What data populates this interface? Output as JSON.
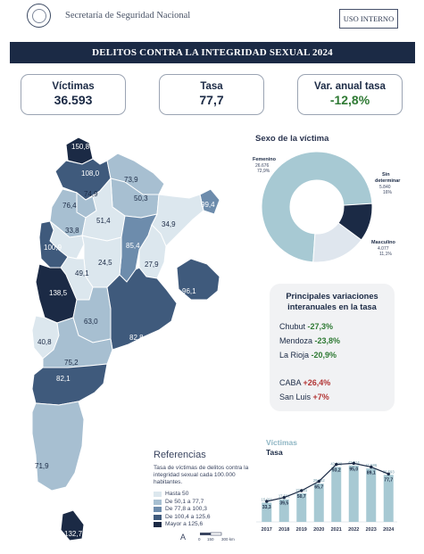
{
  "header": {
    "organization": "Secretaría de Seguridad Nacional",
    "badge": "USO INTERNO"
  },
  "title": "DELITOS CONTRA LA INTEGRIDAD SEXUAL 2024",
  "kpis": [
    {
      "label": "Víctimas",
      "value": "36.593"
    },
    {
      "label": "Tasa",
      "value": "77,7"
    },
    {
      "label": "Var. anual tasa",
      "value": "-12,8%"
    }
  ],
  "map": {
    "province_rates": [
      {
        "province": "Jujuy",
        "value": "150,8"
      },
      {
        "province": "Salta",
        "value": "108,0"
      },
      {
        "province": "Formosa",
        "value": "73,9"
      },
      {
        "province": "Tucumán",
        "value": "74,9"
      },
      {
        "province": "Chaco",
        "value": "50,3"
      },
      {
        "province": "Misiones",
        "value": "99,4"
      },
      {
        "province": "Catamarca",
        "value": "76,4"
      },
      {
        "province": "Santiago del Estero",
        "value": "51,4"
      },
      {
        "province": "Corrientes",
        "value": "34,9"
      },
      {
        "province": "La Rioja",
        "value": "33,8"
      },
      {
        "province": "Santa Fe",
        "value": "85,4"
      },
      {
        "province": "San Juan",
        "value": "100,9"
      },
      {
        "province": "Córdoba",
        "value": "24,5"
      },
      {
        "province": "Entre Ríos",
        "value": "27,9"
      },
      {
        "province": "San Luis",
        "value": "49,1"
      },
      {
        "province": "Mendoza",
        "value": "138,5"
      },
      {
        "province": "Buenos Aires",
        "value": "96,1"
      },
      {
        "province": "La Pampa",
        "value": "63,0"
      },
      {
        "province": "Buenos Aires Sur",
        "value": "82,8"
      },
      {
        "province": "Neuquén",
        "value": "40,8"
      },
      {
        "province": "Río Negro",
        "value": "75,2"
      },
      {
        "province": "Chubut",
        "value": "82,1"
      },
      {
        "province": "Santa Cruz",
        "value": "71,9"
      },
      {
        "province": "Tierra del Fuego",
        "value": "132,7"
      }
    ]
  },
  "sex_chart": {
    "title": "Sexo de la víctima",
    "chart_data": {
      "type": "pie",
      "title": "Sexo de la víctima",
      "slices": [
        {
          "label": "Femenino",
          "value": 26676,
          "value_text": "26.676",
          "pct_text": "72,9%",
          "color": "#a7c9d3"
        },
        {
          "label": "Sin determinar",
          "value": 5840,
          "value_text": "5.840",
          "pct_text": "16%",
          "color": "#dfe6ee"
        },
        {
          "label": "Masculino",
          "value": 4077,
          "value_text": "4.077",
          "pct_text": "11,1%",
          "color": "#1b2a45"
        }
      ]
    }
  },
  "variations": {
    "title": "Principales variaciones interanuales en la tasa",
    "items": [
      {
        "province": "Chubut",
        "change": "-27,3%",
        "direction": "neg"
      },
      {
        "province": "Mendoza",
        "change": "-23,8%",
        "direction": "neg"
      },
      {
        "province": "La Rioja",
        "change": "-20,9%",
        "direction": "neg"
      },
      {
        "province": "CABA",
        "change": "+26,4%",
        "direction": "pos"
      },
      {
        "province": "San Luis",
        "change": "+7%",
        "direction": "pos"
      }
    ]
  },
  "references": {
    "title": "Referencias",
    "description": "Tasa de víctimas de delitos contra la integridad sexual cada 100.000 habitantes.",
    "legend": [
      {
        "label": "Hasta 50",
        "color": "#dce7ee"
      },
      {
        "label": "De 50,1 a 77,7",
        "color": "#a7bfd1"
      },
      {
        "label": "De 77,8 a 100,3",
        "color": "#6d8cac"
      },
      {
        "label": "De 100,4 a 125,6",
        "color": "#3f5a7c"
      },
      {
        "label": "Mayor a 125,6",
        "color": "#1b2a45"
      }
    ],
    "scale_labels": [
      "0",
      "150",
      "300 km"
    ],
    "north_label": "A"
  },
  "trend_chart": {
    "series_labels": [
      "Víctimas",
      "Tasa"
    ],
    "chart_data": {
      "type": "bar",
      "categories": [
        "2017",
        "2018",
        "2019",
        "2020",
        "2021",
        "2022",
        "2023",
        "2024"
      ],
      "series": [
        {
          "name": "Víctimas",
          "type": "bar",
          "values": [
            15011,
            17561,
            22191,
            29752,
            42692,
            43914,
            41586,
            36593
          ],
          "labels": [
            "15.011",
            "17.561",
            "22.191",
            "29.752",
            "42.692",
            "43.914",
            "41.586",
            "36.593"
          ]
        },
        {
          "name": "Tasa",
          "type": "line",
          "values": [
            33.3,
            39.5,
            50.7,
            65.7,
            93.2,
            95.0,
            89.1,
            77.7
          ],
          "labels": [
            "33,3",
            "39,5",
            "50,7",
            "65,7",
            "93,2",
            "95,0",
            "89,1",
            "77,7"
          ]
        }
      ],
      "ylim": [
        0,
        50000
      ]
    }
  }
}
